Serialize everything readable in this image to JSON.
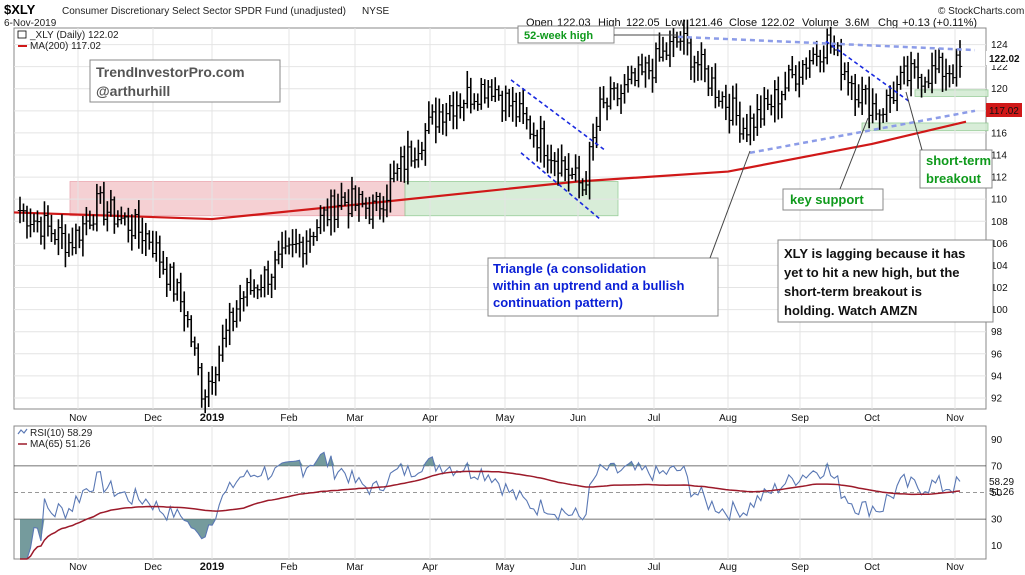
{
  "header": {
    "symbol": "$XLY",
    "fund_name": "Consumer Discretionary Select Sector SPDR Fund (unadjusted)",
    "exchange": "NYSE",
    "date": "6-Nov-2019",
    "open_label": "Open",
    "open": "122.03",
    "high_label": "High",
    "high": "122.05",
    "low_label": "Low",
    "low": "121.46",
    "close_label": "Close",
    "close": "122.02",
    "volume_label": "Volume",
    "volume": "3.6M",
    "chg_label": "Chg",
    "chg": "+0.13 (+0.11%)",
    "brand": "© StockCharts.com"
  },
  "legend": {
    "price": "_XLY (Daily) 122.02",
    "ma200": "MA(200) 117.02",
    "rsi": "RSI(10) 58.29",
    "rsi_ma": "MA(65) 51.26"
  },
  "colors": {
    "price_bars": "#000000",
    "ma200": "#d01818",
    "rsi_line": "#5a78b4",
    "rsi_fill": "#5d8a8c",
    "rsi_ma": "#9c1a2a",
    "red_zone": "#f4c8cc",
    "green_zone": "#d4ecd4",
    "triangle_line": "#8c9ce8",
    "channel_line": "#1a2ae0",
    "annotation_blue": "#0a1fd6",
    "annotation_green": "#0f9a1c"
  },
  "chart_data": [
    {
      "type": "bar",
      "subtype": "ohlc",
      "title": "$XLY Consumer Discretionary Select Sector SPDR Fund (unadjusted)",
      "x_ticks": [
        "Nov",
        "Dec",
        "2019",
        "Feb",
        "Mar",
        "Apr",
        "May",
        "Jun",
        "Jul",
        "Aug",
        "Sep",
        "Oct",
        "Nov"
      ],
      "y_ticks": [
        92,
        94,
        96,
        98,
        100,
        102,
        104,
        106,
        108,
        110,
        112,
        114,
        116,
        118,
        120,
        122,
        124
      ],
      "ylim": [
        91,
        125.5
      ],
      "price_label": "122.02",
      "ma_label": "117.02",
      "anchors": [
        {
          "month": "Oct",
          "close": 109.0
        },
        {
          "month": "Nov",
          "close": 106.0
        },
        {
          "month": "Nov",
          "close": 109.5
        },
        {
          "month": "Dec",
          "close": 106.5
        },
        {
          "month": "Dec",
          "close": 100.0
        },
        {
          "month": "Jan",
          "close": 92.3
        },
        {
          "month": "Jan",
          "close": 101.0
        },
        {
          "month": "Feb",
          "close": 105.0
        },
        {
          "month": "Mar",
          "close": 110.0
        },
        {
          "month": "Mar",
          "close": 109.0
        },
        {
          "month": "Apr",
          "close": 113.5
        },
        {
          "month": "Apr",
          "close": 118.0
        },
        {
          "month": "May",
          "close": 120.5
        },
        {
          "month": "May",
          "close": 116.5
        },
        {
          "month": "Jun",
          "close": 111.0
        },
        {
          "month": "Jun",
          "close": 118.0
        },
        {
          "month": "Jul",
          "close": 121.0
        },
        {
          "month": "Jul",
          "close": 124.5
        },
        {
          "month": "Aug",
          "close": 119.5
        },
        {
          "month": "Aug",
          "close": 116.5
        },
        {
          "month": "Aug",
          "close": 118.5
        },
        {
          "month": "Sep",
          "close": 122.0
        },
        {
          "month": "Sep",
          "close": 124.3
        },
        {
          "month": "Oct",
          "close": 119.5
        },
        {
          "month": "Oct",
          "close": 118.0
        },
        {
          "month": "Oct",
          "close": 121.0
        },
        {
          "month": "Nov",
          "close": 122.02
        }
      ],
      "ma200": [
        {
          "month": "Oct",
          "value": 108.8
        },
        {
          "month": "Jan",
          "value": 108.2
        },
        {
          "month": "Mar",
          "value": 109.5
        },
        {
          "month": "Jun",
          "value": 111.6
        },
        {
          "month": "Aug",
          "value": 112.5
        },
        {
          "month": "Oct",
          "value": 115.0
        },
        {
          "month": "Nov",
          "value": 117.02
        }
      ],
      "zones": [
        {
          "color": "red",
          "from": "Oct",
          "to": "Mar",
          "y_range": [
            108.5,
            111.6
          ]
        },
        {
          "color": "green",
          "from": "Mar",
          "to": "Jun",
          "y_range": [
            108.5,
            111.6
          ]
        },
        {
          "color": "green",
          "from": "Oct",
          "to": "Nov",
          "y_range": [
            116.2,
            116.9
          ]
        },
        {
          "color": "green",
          "from": "Oct",
          "to": "Nov",
          "y_range": [
            119.3,
            119.9
          ]
        }
      ],
      "annotations": {
        "brand_box": [
          "TrendInvestorPro.com",
          "@arthurhill"
        ],
        "week52": "52-week high",
        "triangle": [
          "Triangle (a consolidation",
          "within an uptrend and a bullish",
          "continuation pattern)"
        ],
        "key_support": "key support",
        "short_term": [
          "short-term",
          "breakout"
        ],
        "comment": [
          "XLY is lagging because it has",
          "yet to hit a new high, but the",
          "short-term breakout is",
          "holding. Watch AMZN"
        ]
      }
    },
    {
      "type": "line",
      "title": "RSI(10)",
      "y_ticks": [
        10,
        30,
        50,
        70,
        90
      ],
      "ylim": [
        0,
        100
      ],
      "reference_lines": [
        30,
        50,
        70
      ],
      "rsi_value": "58.29",
      "ma_value": "51.26",
      "x_ticks": [
        "Nov",
        "Dec",
        "2019",
        "Feb",
        "Mar",
        "Apr",
        "May",
        "Jun",
        "Jul",
        "Aug",
        "Sep",
        "Oct",
        "Nov"
      ]
    }
  ]
}
